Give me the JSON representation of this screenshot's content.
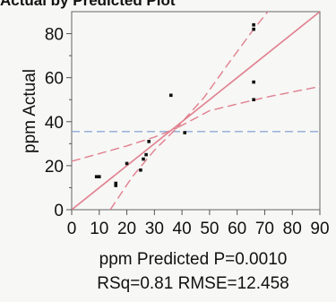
{
  "header": {
    "title": "Actual by Predicted Plot"
  },
  "stats": {
    "line1": "ppm Predicted P=0.0010",
    "line2": "RSq=0.81 RMSE=12.458"
  },
  "colors": {
    "fit_line": "#e07f8e",
    "mean_line": "#8fa9d6",
    "points": "#111111",
    "frame": "#666666"
  },
  "chart_data": {
    "type": "scatter",
    "title": "",
    "xlabel": "",
    "ylabel": "ppm Actual",
    "xlim": [
      0,
      90
    ],
    "ylim": [
      0,
      90
    ],
    "x_ticks": [
      0,
      10,
      20,
      30,
      40,
      50,
      60,
      70,
      80,
      90
    ],
    "y_ticks": [
      0,
      20,
      40,
      60,
      80
    ],
    "points": [
      {
        "x": 9,
        "y": 15
      },
      {
        "x": 10,
        "y": 15
      },
      {
        "x": 16,
        "y": 11
      },
      {
        "x": 16,
        "y": 12
      },
      {
        "x": 20,
        "y": 21
      },
      {
        "x": 25,
        "y": 18
      },
      {
        "x": 26,
        "y": 23
      },
      {
        "x": 27,
        "y": 25
      },
      {
        "x": 28,
        "y": 31
      },
      {
        "x": 36,
        "y": 52
      },
      {
        "x": 41,
        "y": 35
      },
      {
        "x": 66,
        "y": 84
      },
      {
        "x": 66,
        "y": 82
      },
      {
        "x": 66,
        "y": 58
      },
      {
        "x": 66,
        "y": 50
      }
    ],
    "fit_line": [
      [
        0,
        0
      ],
      [
        90,
        90
      ]
    ],
    "mean_line_y": 35.5,
    "confidence_upper": [
      [
        0,
        22
      ],
      [
        20,
        29
      ],
      [
        30,
        33
      ],
      [
        38,
        37
      ],
      [
        48,
        51
      ],
      [
        56,
        65
      ],
      [
        66,
        82
      ],
      [
        75,
        96
      ]
    ],
    "confidence_lower": [
      [
        14,
        0
      ],
      [
        22,
        15
      ],
      [
        30,
        27
      ],
      [
        38,
        37
      ],
      [
        50,
        45
      ],
      [
        60,
        48
      ],
      [
        70,
        51
      ],
      [
        90,
        56
      ]
    ],
    "grid": false
  }
}
